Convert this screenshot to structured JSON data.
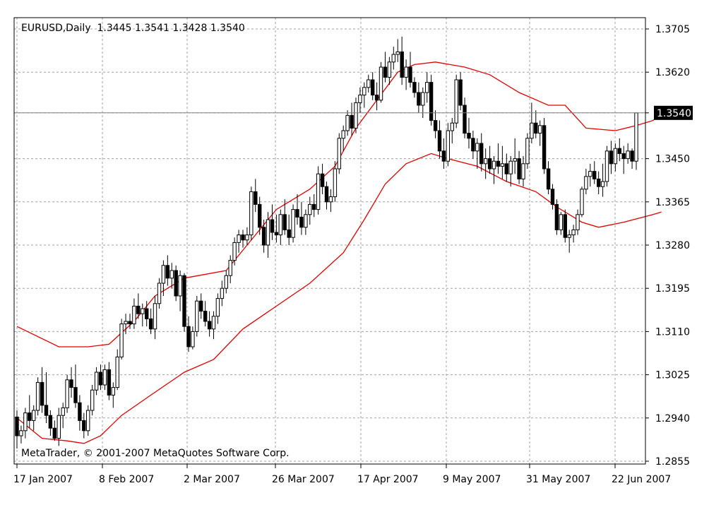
{
  "chart_data": {
    "type": "candlestick",
    "symbol_header": "EURUSD,Daily  1.3445 1.3541 1.3428 1.3540",
    "watermark": "MetaTrader, © 2001-2007 MetaQuotes Software Corp.",
    "ylim": [
      1.2855,
      1.3705
    ],
    "y_ticks": [
      "1.3705",
      "1.3620",
      "1.3540",
      "1.3450",
      "1.3365",
      "1.3280",
      "1.3195",
      "1.3110",
      "1.3025",
      "1.2940",
      "1.2855"
    ],
    "x_ticks": [
      "17 Jan 2007",
      "8 Feb 2007",
      "2 Mar 2007",
      "26 Mar 2007",
      "17 Apr 2007",
      "9 May 2007",
      "31 May 2007",
      "22 Jun 2007"
    ],
    "current_price": "1.3540",
    "grid": true,
    "colors": {
      "candle": "#000000",
      "bollinger_bands": "#e00000",
      "grid": "#a0a0a0",
      "price_line": "#808080"
    },
    "candles": [
      [
        1.2942,
        1.2955,
        1.288,
        1.2905
      ],
      [
        1.2905,
        1.2925,
        1.289,
        1.2915
      ],
      [
        1.2915,
        1.296,
        1.29,
        1.295
      ],
      [
        1.295,
        1.2985,
        1.292,
        1.2935
      ],
      [
        1.2935,
        1.2965,
        1.2915,
        1.2955
      ],
      [
        1.2955,
        1.302,
        1.2945,
        1.301
      ],
      [
        1.301,
        1.304,
        1.295,
        1.2965
      ],
      [
        1.2965,
        1.303,
        1.293,
        1.2945
      ],
      [
        1.2945,
        1.2955,
        1.2905,
        1.292
      ],
      [
        1.292,
        1.2935,
        1.2895,
        1.29
      ],
      [
        1.29,
        1.296,
        1.2885,
        1.2945
      ],
      [
        1.2945,
        1.297,
        1.292,
        1.296
      ],
      [
        1.296,
        1.3025,
        1.295,
        1.3015
      ],
      [
        1.3015,
        1.304,
        1.298,
        1.3
      ],
      [
        1.3,
        1.3045,
        1.296,
        1.297
      ],
      [
        1.297,
        1.2985,
        1.2915,
        1.2935
      ],
      [
        1.2935,
        1.295,
        1.29,
        1.2915
      ],
      [
        1.2915,
        1.2965,
        1.2905,
        1.2955
      ],
      [
        1.2955,
        1.3005,
        1.2945,
        1.2995
      ],
      [
        1.2995,
        1.304,
        1.2985,
        1.303
      ],
      [
        1.303,
        1.3045,
        1.2995,
        1.3005
      ],
      [
        1.3005,
        1.3045,
        1.2995,
        1.3035
      ],
      [
        1.3035,
        1.305,
        1.2975,
        1.2985
      ],
      [
        1.2985,
        1.301,
        1.296,
        1.3
      ],
      [
        1.3,
        1.3075,
        1.2995,
        1.306
      ],
      [
        1.306,
        1.3135,
        1.3055,
        1.3125
      ],
      [
        1.3125,
        1.3145,
        1.3105,
        1.313
      ],
      [
        1.313,
        1.3145,
        1.3115,
        1.3125
      ],
      [
        1.3125,
        1.3175,
        1.3115,
        1.316
      ],
      [
        1.316,
        1.3185,
        1.3135,
        1.3145
      ],
      [
        1.3145,
        1.3165,
        1.312,
        1.3155
      ],
      [
        1.3155,
        1.317,
        1.312,
        1.3135
      ],
      [
        1.3135,
        1.3155,
        1.3105,
        1.3115
      ],
      [
        1.3115,
        1.318,
        1.3095,
        1.3165
      ],
      [
        1.3165,
        1.3215,
        1.3155,
        1.3205
      ],
      [
        1.3205,
        1.325,
        1.318,
        1.324
      ],
      [
        1.324,
        1.326,
        1.32,
        1.3215
      ],
      [
        1.3215,
        1.3245,
        1.3195,
        1.323
      ],
      [
        1.323,
        1.324,
        1.317,
        1.318
      ],
      [
        1.318,
        1.323,
        1.315,
        1.322
      ],
      [
        1.322,
        1.3225,
        1.311,
        1.312
      ],
      [
        1.312,
        1.314,
        1.307,
        1.308
      ],
      [
        1.308,
        1.312,
        1.3075,
        1.311
      ],
      [
        1.311,
        1.318,
        1.31,
        1.317
      ],
      [
        1.317,
        1.3185,
        1.3135,
        1.315
      ],
      [
        1.315,
        1.317,
        1.312,
        1.313
      ],
      [
        1.313,
        1.315,
        1.31,
        1.3115
      ],
      [
        1.3115,
        1.315,
        1.3095,
        1.314
      ],
      [
        1.314,
        1.3185,
        1.3125,
        1.3175
      ],
      [
        1.3175,
        1.321,
        1.316,
        1.3195
      ],
      [
        1.3195,
        1.323,
        1.3185,
        1.322
      ],
      [
        1.322,
        1.326,
        1.3205,
        1.325
      ],
      [
        1.325,
        1.3295,
        1.324,
        1.3285
      ],
      [
        1.3285,
        1.331,
        1.3265,
        1.33
      ],
      [
        1.33,
        1.331,
        1.3275,
        1.329
      ],
      [
        1.329,
        1.3315,
        1.328,
        1.33
      ],
      [
        1.33,
        1.3395,
        1.329,
        1.3385
      ],
      [
        1.3385,
        1.341,
        1.3345,
        1.336
      ],
      [
        1.336,
        1.3375,
        1.33,
        1.3315
      ],
      [
        1.3315,
        1.333,
        1.3265,
        1.328
      ],
      [
        1.328,
        1.3345,
        1.3255,
        1.333
      ],
      [
        1.333,
        1.336,
        1.329,
        1.3305
      ],
      [
        1.3305,
        1.334,
        1.3285,
        1.33
      ],
      [
        1.33,
        1.335,
        1.328,
        1.334
      ],
      [
        1.334,
        1.337,
        1.33,
        1.331
      ],
      [
        1.331,
        1.334,
        1.328,
        1.3295
      ],
      [
        1.3295,
        1.336,
        1.3285,
        1.335
      ],
      [
        1.335,
        1.338,
        1.332,
        1.3335
      ],
      [
        1.3335,
        1.3365,
        1.33,
        1.3315
      ],
      [
        1.3315,
        1.335,
        1.33,
        1.334
      ],
      [
        1.334,
        1.3375,
        1.332,
        1.336
      ],
      [
        1.336,
        1.338,
        1.3335,
        1.335
      ],
      [
        1.335,
        1.3435,
        1.334,
        1.342
      ],
      [
        1.342,
        1.344,
        1.338,
        1.3395
      ],
      [
        1.3395,
        1.3405,
        1.335,
        1.3365
      ],
      [
        1.3365,
        1.339,
        1.3345,
        1.3375
      ],
      [
        1.3375,
        1.3445,
        1.3365,
        1.343
      ],
      [
        1.343,
        1.35,
        1.342,
        1.349
      ],
      [
        1.349,
        1.3515,
        1.3465,
        1.3505
      ],
      [
        1.3505,
        1.3545,
        1.3495,
        1.3535
      ],
      [
        1.3535,
        1.356,
        1.3495,
        1.351
      ],
      [
        1.351,
        1.357,
        1.35,
        1.356
      ],
      [
        1.356,
        1.359,
        1.354,
        1.3575
      ],
      [
        1.3575,
        1.36,
        1.355,
        1.359
      ],
      [
        1.359,
        1.3615,
        1.358,
        1.3605
      ],
      [
        1.3605,
        1.362,
        1.3565,
        1.3575
      ],
      [
        1.3575,
        1.36,
        1.3545,
        1.3565
      ],
      [
        1.3565,
        1.364,
        1.356,
        1.363
      ],
      [
        1.363,
        1.366,
        1.36,
        1.361
      ],
      [
        1.361,
        1.365,
        1.3595,
        1.364
      ],
      [
        1.364,
        1.367,
        1.3625,
        1.3655
      ],
      [
        1.3655,
        1.3685,
        1.364,
        1.366
      ],
      [
        1.366,
        1.369,
        1.3595,
        1.361
      ],
      [
        1.361,
        1.3645,
        1.3585,
        1.363
      ],
      [
        1.363,
        1.366,
        1.359,
        1.36
      ],
      [
        1.36,
        1.361,
        1.357,
        1.358
      ],
      [
        1.358,
        1.36,
        1.354,
        1.3555
      ],
      [
        1.3555,
        1.359,
        1.353,
        1.358
      ],
      [
        1.358,
        1.362,
        1.356,
        1.36
      ],
      [
        1.36,
        1.3615,
        1.3515,
        1.3525
      ],
      [
        1.3525,
        1.3545,
        1.349,
        1.3505
      ],
      [
        1.3505,
        1.3525,
        1.345,
        1.3465
      ],
      [
        1.3465,
        1.349,
        1.343,
        1.3445
      ],
      [
        1.3445,
        1.352,
        1.3435,
        1.3505
      ],
      [
        1.3505,
        1.353,
        1.348,
        1.352
      ],
      [
        1.352,
        1.3615,
        1.351,
        1.3605
      ],
      [
        1.3605,
        1.362,
        1.3545,
        1.3555
      ],
      [
        1.3555,
        1.357,
        1.349,
        1.35
      ],
      [
        1.35,
        1.353,
        1.347,
        1.349
      ],
      [
        1.349,
        1.3505,
        1.345,
        1.3465
      ],
      [
        1.3465,
        1.349,
        1.343,
        1.348
      ],
      [
        1.348,
        1.35,
        1.3425,
        1.344
      ],
      [
        1.344,
        1.347,
        1.341,
        1.345
      ],
      [
        1.345,
        1.3475,
        1.342,
        1.343
      ],
      [
        1.343,
        1.3455,
        1.34,
        1.3445
      ],
      [
        1.3445,
        1.348,
        1.342,
        1.3435
      ],
      [
        1.3435,
        1.3475,
        1.341,
        1.344
      ],
      [
        1.344,
        1.346,
        1.3405,
        1.342
      ],
      [
        1.342,
        1.3455,
        1.3395,
        1.3445
      ],
      [
        1.3445,
        1.349,
        1.342,
        1.345
      ],
      [
        1.345,
        1.3465,
        1.34,
        1.341
      ],
      [
        1.341,
        1.3455,
        1.3395,
        1.344
      ],
      [
        1.344,
        1.35,
        1.343,
        1.349
      ],
      [
        1.349,
        1.356,
        1.348,
        1.352
      ],
      [
        1.352,
        1.3545,
        1.349,
        1.35
      ],
      [
        1.35,
        1.3525,
        1.3475,
        1.3515
      ],
      [
        1.3515,
        1.353,
        1.342,
        1.343
      ],
      [
        1.343,
        1.3445,
        1.338,
        1.339
      ],
      [
        1.339,
        1.34,
        1.335,
        1.336
      ],
      [
        1.336,
        1.337,
        1.33,
        1.331
      ],
      [
        1.331,
        1.3345,
        1.33,
        1.334
      ],
      [
        1.334,
        1.335,
        1.3285,
        1.3295
      ],
      [
        1.3295,
        1.331,
        1.3265,
        1.33
      ],
      [
        1.33,
        1.332,
        1.3285,
        1.331
      ],
      [
        1.331,
        1.335,
        1.33,
        1.334
      ],
      [
        1.334,
        1.3395,
        1.3335,
        1.339
      ],
      [
        1.339,
        1.343,
        1.338,
        1.3415
      ],
      [
        1.3415,
        1.344,
        1.3395,
        1.3425
      ],
      [
        1.3425,
        1.3445,
        1.34,
        1.341
      ],
      [
        1.341,
        1.3425,
        1.338,
        1.3395
      ],
      [
        1.3395,
        1.344,
        1.3375,
        1.3405
      ],
      [
        1.3405,
        1.3475,
        1.3395,
        1.3465
      ],
      [
        1.3465,
        1.3485,
        1.342,
        1.344
      ],
      [
        1.344,
        1.348,
        1.3425,
        1.347
      ],
      [
        1.347,
        1.349,
        1.3445,
        1.346
      ],
      [
        1.346,
        1.3475,
        1.342,
        1.345
      ],
      [
        1.345,
        1.348,
        1.344,
        1.3465
      ],
      [
        1.3465,
        1.347,
        1.343,
        1.3445
      ],
      [
        1.3445,
        1.3541,
        1.3428,
        1.354
      ]
    ],
    "bollinger_upper": [
      [
        0,
        1.312
      ],
      [
        10,
        1.308
      ],
      [
        17,
        1.308
      ],
      [
        22,
        1.3085
      ],
      [
        28,
        1.313
      ],
      [
        33,
        1.318
      ],
      [
        40,
        1.3215
      ],
      [
        50,
        1.323
      ],
      [
        55,
        1.328
      ],
      [
        62,
        1.335
      ],
      [
        70,
        1.339
      ],
      [
        76,
        1.3435
      ],
      [
        81,
        1.351
      ],
      [
        86,
        1.3565
      ],
      [
        91,
        1.362
      ],
      [
        95,
        1.3635
      ],
      [
        100,
        1.364
      ],
      [
        107,
        1.363
      ],
      [
        113,
        1.3615
      ],
      [
        120,
        1.358
      ],
      [
        127,
        1.3555
      ],
      [
        131,
        1.3555
      ],
      [
        136,
        1.351
      ],
      [
        143,
        1.3505
      ],
      [
        148,
        1.3515
      ],
      [
        152,
        1.3525
      ],
      [
        154,
        1.354
      ]
    ],
    "bollinger_lower": [
      [
        0,
        1.294
      ],
      [
        6,
        1.29
      ],
      [
        12,
        1.2895
      ],
      [
        16,
        1.289
      ],
      [
        20,
        1.2905
      ],
      [
        25,
        1.2945
      ],
      [
        32,
        1.2985
      ],
      [
        40,
        1.303
      ],
      [
        47,
        1.3055
      ],
      [
        54,
        1.3115
      ],
      [
        62,
        1.316
      ],
      [
        70,
        1.3205
      ],
      [
        78,
        1.3265
      ],
      [
        83,
        1.333
      ],
      [
        88,
        1.34
      ],
      [
        93,
        1.344
      ],
      [
        99,
        1.346
      ],
      [
        103,
        1.345
      ],
      [
        110,
        1.3435
      ],
      [
        117,
        1.3405
      ],
      [
        124,
        1.3385
      ],
      [
        129,
        1.3355
      ],
      [
        135,
        1.3325
      ],
      [
        139,
        1.3315
      ],
      [
        145,
        1.3325
      ],
      [
        152,
        1.334
      ],
      [
        154,
        1.3345
      ]
    ]
  }
}
